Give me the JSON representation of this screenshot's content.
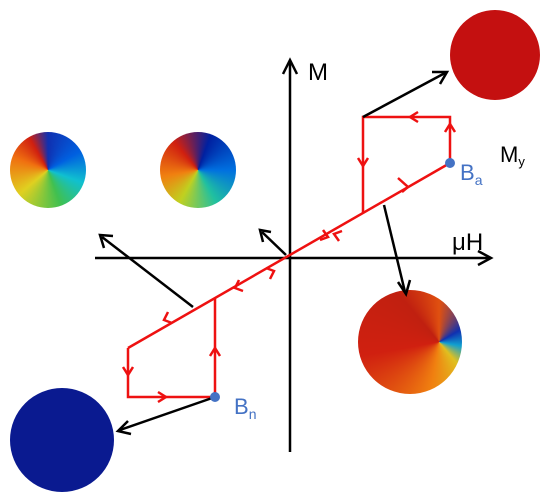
{
  "axes": {
    "y_label": "M",
    "x_label": "μH"
  },
  "labels": {
    "my": {
      "main": "M",
      "sub": "y"
    },
    "ba": {
      "main": "B",
      "sub": "a"
    },
    "bn": {
      "main": "B",
      "sub": "n"
    }
  }
}
